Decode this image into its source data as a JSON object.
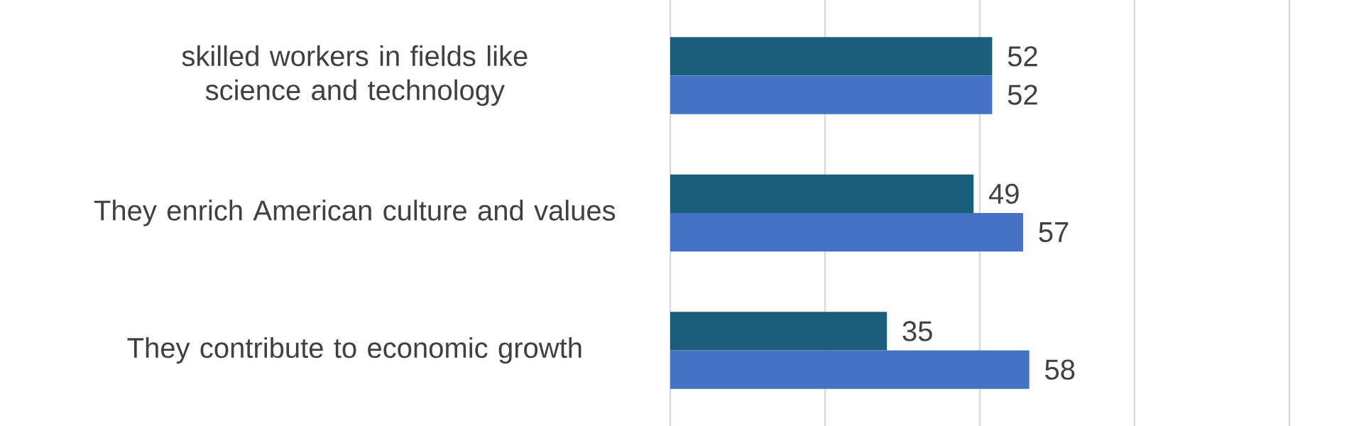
{
  "chart_data": {
    "type": "bar",
    "orientation": "horizontal",
    "categories": [
      "skilled workers in fields like science and technology",
      "They enrich American culture and values",
      "They contribute to economic growth"
    ],
    "series": [
      {
        "color": "#1a5e7b",
        "values": [
          52,
          49,
          35
        ]
      },
      {
        "color": "#4472c4",
        "values": [
          52,
          57,
          58
        ]
      }
    ],
    "xlim": [
      0,
      100
    ],
    "xticks": [
      0,
      25,
      50,
      75,
      100
    ],
    "grid": "x",
    "tick_labels": "y",
    "data_labels": true
  }
}
